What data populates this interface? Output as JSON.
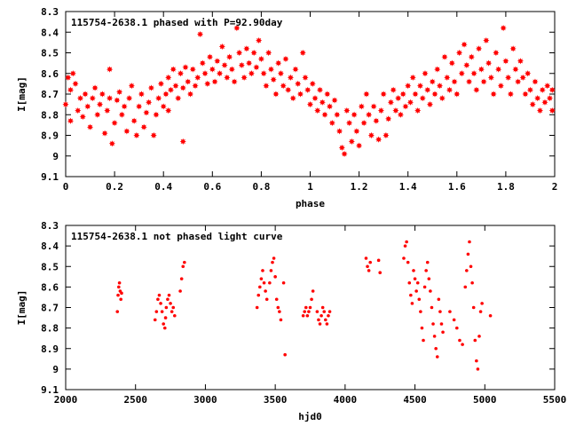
{
  "chart_data": [
    {
      "type": "scatter",
      "title": "115754-2638.1 phased with P=92.90day",
      "xlabel": "phase",
      "ylabel": "I[mag]",
      "xlim": [
        0,
        2
      ],
      "ylim": [
        8.3,
        9.1
      ],
      "y_inverted": true,
      "grid": false,
      "marker_color": "#ff0000",
      "marker": "filled-star",
      "xticks": [
        "0",
        "0.2",
        "0.4",
        "0.6",
        "0.8",
        "1",
        "1.2",
        "1.4",
        "1.6",
        "1.8",
        "2"
      ],
      "yticks": [
        "8.3",
        "8.4",
        "8.5",
        "8.6",
        "8.7",
        "8.8",
        "8.9",
        "9",
        "9.1"
      ],
      "points": [
        [
          0.0,
          8.75
        ],
        [
          0.01,
          8.62
        ],
        [
          0.02,
          8.68
        ],
        [
          0.02,
          8.83
        ],
        [
          0.03,
          8.6
        ],
        [
          0.04,
          8.65
        ],
        [
          0.05,
          8.78
        ],
        [
          0.06,
          8.72
        ],
        [
          0.07,
          8.81
        ],
        [
          0.08,
          8.7
        ],
        [
          0.09,
          8.76
        ],
        [
          0.1,
          8.86
        ],
        [
          0.11,
          8.72
        ],
        [
          0.12,
          8.67
        ],
        [
          0.13,
          8.8
        ],
        [
          0.14,
          8.75
        ],
        [
          0.15,
          8.7
        ],
        [
          0.16,
          8.89
        ],
        [
          0.17,
          8.78
        ],
        [
          0.18,
          8.72
        ],
        [
          0.18,
          8.58
        ],
        [
          0.19,
          8.94
        ],
        [
          0.2,
          8.84
        ],
        [
          0.21,
          8.73
        ],
        [
          0.22,
          8.69
        ],
        [
          0.23,
          8.8
        ],
        [
          0.24,
          8.76
        ],
        [
          0.25,
          8.88
        ],
        [
          0.26,
          8.72
        ],
        [
          0.27,
          8.66
        ],
        [
          0.28,
          8.83
        ],
        [
          0.29,
          8.9
        ],
        [
          0.3,
          8.76
        ],
        [
          0.31,
          8.7
        ],
        [
          0.32,
          8.86
        ],
        [
          0.33,
          8.79
        ],
        [
          0.34,
          8.74
        ],
        [
          0.35,
          8.67
        ],
        [
          0.36,
          8.9
        ],
        [
          0.37,
          8.8
        ],
        [
          0.38,
          8.72
        ],
        [
          0.39,
          8.65
        ],
        [
          0.4,
          8.76
        ],
        [
          0.41,
          8.7
        ],
        [
          0.42,
          8.62
        ],
        [
          0.42,
          8.78
        ],
        [
          0.43,
          8.68
        ],
        [
          0.44,
          8.58
        ],
        [
          0.45,
          8.66
        ],
        [
          0.46,
          8.72
        ],
        [
          0.47,
          8.6
        ],
        [
          0.48,
          8.67
        ],
        [
          0.48,
          8.93
        ],
        [
          0.49,
          8.57
        ],
        [
          0.5,
          8.64
        ],
        [
          0.51,
          8.7
        ],
        [
          0.52,
          8.58
        ],
        [
          0.53,
          8.66
        ],
        [
          0.54,
          8.62
        ],
        [
          0.55,
          8.41
        ],
        [
          0.56,
          8.55
        ],
        [
          0.57,
          8.6
        ],
        [
          0.58,
          8.65
        ],
        [
          0.59,
          8.52
        ],
        [
          0.6,
          8.58
        ],
        [
          0.61,
          8.64
        ],
        [
          0.62,
          8.54
        ],
        [
          0.63,
          8.6
        ],
        [
          0.64,
          8.47
        ],
        [
          0.65,
          8.56
        ],
        [
          0.66,
          8.62
        ],
        [
          0.67,
          8.52
        ],
        [
          0.68,
          8.58
        ],
        [
          0.69,
          8.64
        ],
        [
          0.7,
          8.38
        ],
        [
          0.71,
          8.5
        ],
        [
          0.72,
          8.56
        ],
        [
          0.73,
          8.62
        ],
        [
          0.74,
          8.48
        ],
        [
          0.75,
          8.55
        ],
        [
          0.76,
          8.6
        ],
        [
          0.77,
          8.5
        ],
        [
          0.78,
          8.57
        ],
        [
          0.79,
          8.44
        ],
        [
          0.8,
          8.53
        ],
        [
          0.81,
          8.6
        ],
        [
          0.82,
          8.66
        ],
        [
          0.83,
          8.5
        ],
        [
          0.84,
          8.58
        ],
        [
          0.85,
          8.63
        ],
        [
          0.86,
          8.7
        ],
        [
          0.87,
          8.55
        ],
        [
          0.88,
          8.6
        ],
        [
          0.89,
          8.66
        ],
        [
          0.9,
          8.53
        ],
        [
          0.91,
          8.68
        ],
        [
          0.92,
          8.62
        ],
        [
          0.93,
          8.72
        ],
        [
          0.94,
          8.58
        ],
        [
          0.95,
          8.65
        ],
        [
          0.96,
          8.7
        ],
        [
          0.97,
          8.5
        ],
        [
          0.98,
          8.62
        ],
        [
          0.99,
          8.68
        ],
        [
          1.0,
          8.75
        ],
        [
          1.01,
          8.65
        ],
        [
          1.02,
          8.72
        ],
        [
          1.03,
          8.78
        ],
        [
          1.04,
          8.68
        ],
        [
          1.05,
          8.74
        ],
        [
          1.06,
          8.8
        ],
        [
          1.07,
          8.7
        ],
        [
          1.08,
          8.76
        ],
        [
          1.09,
          8.84
        ],
        [
          1.1,
          8.73
        ],
        [
          1.11,
          8.8
        ],
        [
          1.12,
          8.88
        ],
        [
          1.13,
          8.96
        ],
        [
          1.14,
          8.99
        ],
        [
          1.15,
          8.78
        ],
        [
          1.16,
          8.84
        ],
        [
          1.17,
          8.93
        ],
        [
          1.18,
          8.8
        ],
        [
          1.19,
          8.88
        ],
        [
          1.2,
          8.95
        ],
        [
          1.21,
          8.76
        ],
        [
          1.22,
          8.84
        ],
        [
          1.23,
          8.7
        ],
        [
          1.24,
          8.8
        ],
        [
          1.25,
          8.9
        ],
        [
          1.26,
          8.76
        ],
        [
          1.27,
          8.83
        ],
        [
          1.28,
          8.92
        ],
        [
          1.29,
          8.78
        ],
        [
          1.3,
          8.7
        ],
        [
          1.31,
          8.9
        ],
        [
          1.32,
          8.82
        ],
        [
          1.33,
          8.74
        ],
        [
          1.34,
          8.68
        ],
        [
          1.35,
          8.78
        ],
        [
          1.36,
          8.72
        ],
        [
          1.37,
          8.8
        ],
        [
          1.38,
          8.7
        ],
        [
          1.39,
          8.76
        ],
        [
          1.4,
          8.66
        ],
        [
          1.41,
          8.74
        ],
        [
          1.42,
          8.62
        ],
        [
          1.43,
          8.7
        ],
        [
          1.44,
          8.78
        ],
        [
          1.45,
          8.66
        ],
        [
          1.46,
          8.72
        ],
        [
          1.47,
          8.6
        ],
        [
          1.48,
          8.68
        ],
        [
          1.49,
          8.75
        ],
        [
          1.5,
          8.64
        ],
        [
          1.51,
          8.7
        ],
        [
          1.52,
          8.58
        ],
        [
          1.53,
          8.66
        ],
        [
          1.54,
          8.72
        ],
        [
          1.55,
          8.52
        ],
        [
          1.56,
          8.62
        ],
        [
          1.57,
          8.68
        ],
        [
          1.58,
          8.55
        ],
        [
          1.59,
          8.64
        ],
        [
          1.6,
          8.7
        ],
        [
          1.61,
          8.5
        ],
        [
          1.62,
          8.6
        ],
        [
          1.63,
          8.46
        ],
        [
          1.64,
          8.56
        ],
        [
          1.65,
          8.64
        ],
        [
          1.66,
          8.52
        ],
        [
          1.67,
          8.6
        ],
        [
          1.68,
          8.68
        ],
        [
          1.69,
          8.48
        ],
        [
          1.7,
          8.58
        ],
        [
          1.71,
          8.64
        ],
        [
          1.72,
          8.44
        ],
        [
          1.73,
          8.55
        ],
        [
          1.74,
          8.62
        ],
        [
          1.75,
          8.7
        ],
        [
          1.76,
          8.5
        ],
        [
          1.77,
          8.58
        ],
        [
          1.78,
          8.66
        ],
        [
          1.79,
          8.38
        ],
        [
          1.8,
          8.54
        ],
        [
          1.81,
          8.62
        ],
        [
          1.82,
          8.7
        ],
        [
          1.83,
          8.48
        ],
        [
          1.84,
          8.58
        ],
        [
          1.85,
          8.64
        ],
        [
          1.86,
          8.54
        ],
        [
          1.87,
          8.62
        ],
        [
          1.88,
          8.7
        ],
        [
          1.89,
          8.6
        ],
        [
          1.9,
          8.68
        ],
        [
          1.91,
          8.75
        ],
        [
          1.92,
          8.64
        ],
        [
          1.93,
          8.72
        ],
        [
          1.94,
          8.78
        ],
        [
          1.95,
          8.68
        ],
        [
          1.96,
          8.74
        ],
        [
          1.97,
          8.66
        ],
        [
          1.98,
          8.72
        ],
        [
          1.99,
          8.78
        ],
        [
          1.99,
          8.68
        ]
      ]
    },
    {
      "type": "scatter",
      "title": "115754-2638.1 not phased light curve",
      "xlabel": "hjd0",
      "ylabel": "I[mag]",
      "xlim": [
        2000,
        5500
      ],
      "ylim": [
        8.3,
        9.1
      ],
      "y_inverted": true,
      "grid": false,
      "marker_color": "#ff0000",
      "marker": "small-dot",
      "xticks": [
        "2000",
        "2500",
        "3000",
        "3500",
        "4000",
        "4500",
        "5000",
        "5500"
      ],
      "yticks": [
        "8.3",
        "8.4",
        "8.5",
        "8.6",
        "8.7",
        "8.8",
        "8.9",
        "9",
        "9.1"
      ],
      "points": [
        [
          2370,
          8.72
        ],
        [
          2375,
          8.64
        ],
        [
          2380,
          8.6
        ],
        [
          2385,
          8.58
        ],
        [
          2390,
          8.62
        ],
        [
          2395,
          8.66
        ],
        [
          2400,
          8.63
        ],
        [
          2640,
          8.76
        ],
        [
          2650,
          8.72
        ],
        [
          2660,
          8.66
        ],
        [
          2670,
          8.64
        ],
        [
          2680,
          8.68
        ],
        [
          2690,
          8.72
        ],
        [
          2700,
          8.78
        ],
        [
          2710,
          8.8
        ],
        [
          2715,
          8.75
        ],
        [
          2720,
          8.7
        ],
        [
          2730,
          8.66
        ],
        [
          2740,
          8.64
        ],
        [
          2750,
          8.68
        ],
        [
          2760,
          8.72
        ],
        [
          2770,
          8.7
        ],
        [
          2780,
          8.74
        ],
        [
          2820,
          8.62
        ],
        [
          2830,
          8.56
        ],
        [
          2840,
          8.5
        ],
        [
          2850,
          8.48
        ],
        [
          3370,
          8.7
        ],
        [
          3380,
          8.64
        ],
        [
          3390,
          8.6
        ],
        [
          3400,
          8.56
        ],
        [
          3410,
          8.52
        ],
        [
          3420,
          8.58
        ],
        [
          3430,
          8.62
        ],
        [
          3440,
          8.66
        ],
        [
          3460,
          8.58
        ],
        [
          3470,
          8.52
        ],
        [
          3480,
          8.48
        ],
        [
          3490,
          8.46
        ],
        [
          3500,
          8.55
        ],
        [
          3510,
          8.66
        ],
        [
          3520,
          8.7
        ],
        [
          3530,
          8.72
        ],
        [
          3540,
          8.76
        ],
        [
          3560,
          8.58
        ],
        [
          3570,
          8.93
        ],
        [
          3700,
          8.74
        ],
        [
          3710,
          8.72
        ],
        [
          3720,
          8.7
        ],
        [
          3730,
          8.74
        ],
        [
          3740,
          8.72
        ],
        [
          3750,
          8.7
        ],
        [
          3760,
          8.66
        ],
        [
          3770,
          8.62
        ],
        [
          3800,
          8.72
        ],
        [
          3810,
          8.76
        ],
        [
          3820,
          8.78
        ],
        [
          3830,
          8.74
        ],
        [
          3840,
          8.7
        ],
        [
          3850,
          8.72
        ],
        [
          3860,
          8.76
        ],
        [
          3870,
          8.78
        ],
        [
          3880,
          8.74
        ],
        [
          3890,
          8.72
        ],
        [
          4150,
          8.46
        ],
        [
          4160,
          8.5
        ],
        [
          4170,
          8.52
        ],
        [
          4180,
          8.48
        ],
        [
          4240,
          8.47
        ],
        [
          4250,
          8.53
        ],
        [
          4420,
          8.46
        ],
        [
          4430,
          8.4
        ],
        [
          4440,
          8.38
        ],
        [
          4450,
          8.48
        ],
        [
          4460,
          8.58
        ],
        [
          4470,
          8.64
        ],
        [
          4480,
          8.68
        ],
        [
          4490,
          8.52
        ],
        [
          4500,
          8.56
        ],
        [
          4510,
          8.62
        ],
        [
          4520,
          8.58
        ],
        [
          4530,
          8.66
        ],
        [
          4540,
          8.72
        ],
        [
          4550,
          8.8
        ],
        [
          4560,
          8.86
        ],
        [
          4570,
          8.6
        ],
        [
          4580,
          8.52
        ],
        [
          4590,
          8.48
        ],
        [
          4600,
          8.56
        ],
        [
          4610,
          8.62
        ],
        [
          4620,
          8.7
        ],
        [
          4630,
          8.78
        ],
        [
          4640,
          8.84
        ],
        [
          4650,
          8.9
        ],
        [
          4660,
          8.94
        ],
        [
          4670,
          8.66
        ],
        [
          4680,
          8.72
        ],
        [
          4690,
          8.78
        ],
        [
          4700,
          8.82
        ],
        [
          4750,
          8.72
        ],
        [
          4780,
          8.76
        ],
        [
          4800,
          8.8
        ],
        [
          4820,
          8.86
        ],
        [
          4840,
          8.88
        ],
        [
          4860,
          8.6
        ],
        [
          4870,
          8.52
        ],
        [
          4880,
          8.44
        ],
        [
          4890,
          8.38
        ],
        [
          4900,
          8.5
        ],
        [
          4910,
          8.58
        ],
        [
          4920,
          8.7
        ],
        [
          4930,
          8.86
        ],
        [
          4940,
          8.96
        ],
        [
          4950,
          9.0
        ],
        [
          4960,
          8.84
        ],
        [
          4970,
          8.72
        ],
        [
          4980,
          8.68
        ],
        [
          5040,
          8.74
        ]
      ]
    }
  ]
}
